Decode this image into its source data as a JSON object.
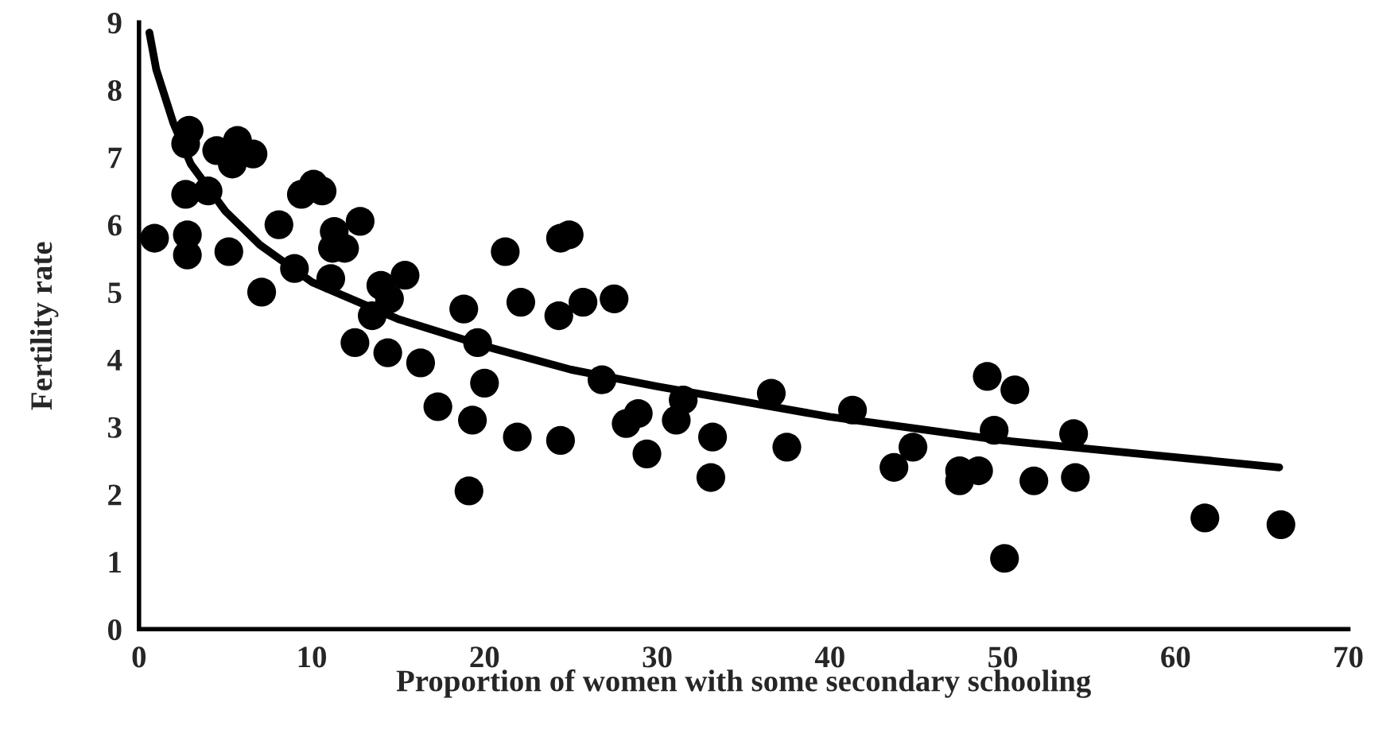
{
  "chart_data": {
    "type": "scatter",
    "xlabel": "Proportion of women with some secondary schooling",
    "ylabel": "Fertility rate",
    "xlim": [
      0,
      70
    ],
    "ylim": [
      0,
      9
    ],
    "xticks": [
      0,
      10,
      20,
      30,
      40,
      50,
      60,
      70
    ],
    "yticks": [
      0,
      1,
      2,
      3,
      4,
      5,
      6,
      7,
      8,
      9
    ],
    "grid": false,
    "legend": false,
    "marker": "circle",
    "series": [
      {
        "color": "#000000",
        "x": [
          0.9,
          2.9,
          2.7,
          2.7,
          4.0,
          2.8,
          2.8,
          4.5,
          5.7,
          5.4,
          6.6,
          5.2,
          7.1,
          8.1,
          9.0,
          9.4,
          10.1,
          10.6,
          11.1,
          11.3,
          11.9,
          11.2,
          12.8,
          12.5,
          13.5,
          14.0,
          14.5,
          15.4,
          14.4,
          16.3,
          17.3,
          18.8,
          20.0,
          19.6,
          19.3,
          19.1,
          21.2,
          22.1,
          21.9,
          24.4,
          24.9,
          24.3,
          24.4,
          25.7,
          27.5,
          26.8,
          28.2,
          28.9,
          29.4,
          31.1,
          31.5,
          33.2,
          33.1,
          36.6,
          37.5,
          41.3,
          43.7,
          44.8,
          49.1,
          50.7,
          49.5,
          54.1,
          47.5,
          48.6,
          47.5,
          51.8,
          54.2,
          61.7,
          66.1,
          50.1
        ],
        "values": [
          5.8,
          7.4,
          7.2,
          6.45,
          6.5,
          5.85,
          5.55,
          7.1,
          7.25,
          6.9,
          7.05,
          5.6,
          5.0,
          6.0,
          5.35,
          6.45,
          6.6,
          6.5,
          5.2,
          5.9,
          5.65,
          5.65,
          6.05,
          4.25,
          4.65,
          5.1,
          4.9,
          5.25,
          4.1,
          3.95,
          3.3,
          4.75,
          3.65,
          4.25,
          3.1,
          2.05,
          5.6,
          4.85,
          2.85,
          5.8,
          5.85,
          4.65,
          2.8,
          4.85,
          4.9,
          3.7,
          3.05,
          3.2,
          2.6,
          3.1,
          3.4,
          2.85,
          2.25,
          3.5,
          2.7,
          3.25,
          2.4,
          2.7,
          3.75,
          3.55,
          2.95,
          2.9,
          2.35,
          2.35,
          2.2,
          2.2,
          2.25,
          1.65,
          1.55,
          1.05
        ]
      },
      {
        "type": "line",
        "color": "#000000",
        "marker": "none",
        "line_style": "solid",
        "x": [
          0.6,
          1,
          2,
          3,
          5,
          7,
          10,
          15,
          20,
          25,
          30,
          40,
          50,
          60,
          66
        ],
        "values": [
          8.85,
          8.3,
          7.5,
          6.9,
          6.2,
          5.7,
          5.15,
          4.6,
          4.2,
          3.85,
          3.6,
          3.15,
          2.8,
          2.55,
          2.4
        ]
      }
    ]
  }
}
